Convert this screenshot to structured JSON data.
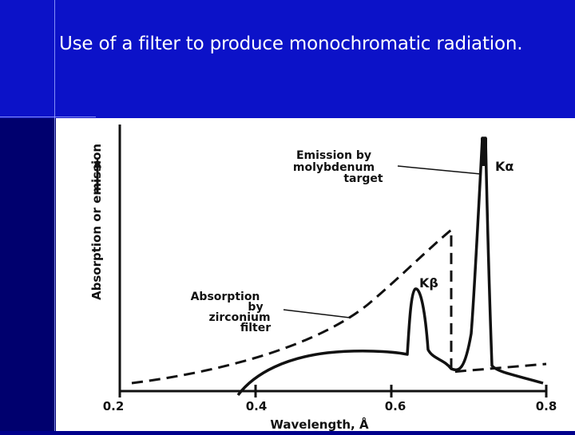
{
  "slide": {
    "title": "Use of a filter to produce monochromatic radiation."
  },
  "figure": {
    "y_axis_label": "Absorption or emission",
    "x_axis_label": "Wavelength, Å",
    "x_ticks": [
      "0.2",
      "0.4",
      "0.6",
      "0.8"
    ],
    "annotation_emission": [
      "Emission by",
      "molybdenum",
      "target"
    ],
    "annotation_absorption": [
      "Absorption",
      "by",
      "zirconium",
      "filter"
    ],
    "label_k_alpha": "Kα",
    "label_k_beta": "Kβ"
  },
  "colors": {
    "title_band": "#0c12c8",
    "background": "#00008b",
    "figure_background": "#ffffff",
    "ink": "#111111"
  }
}
